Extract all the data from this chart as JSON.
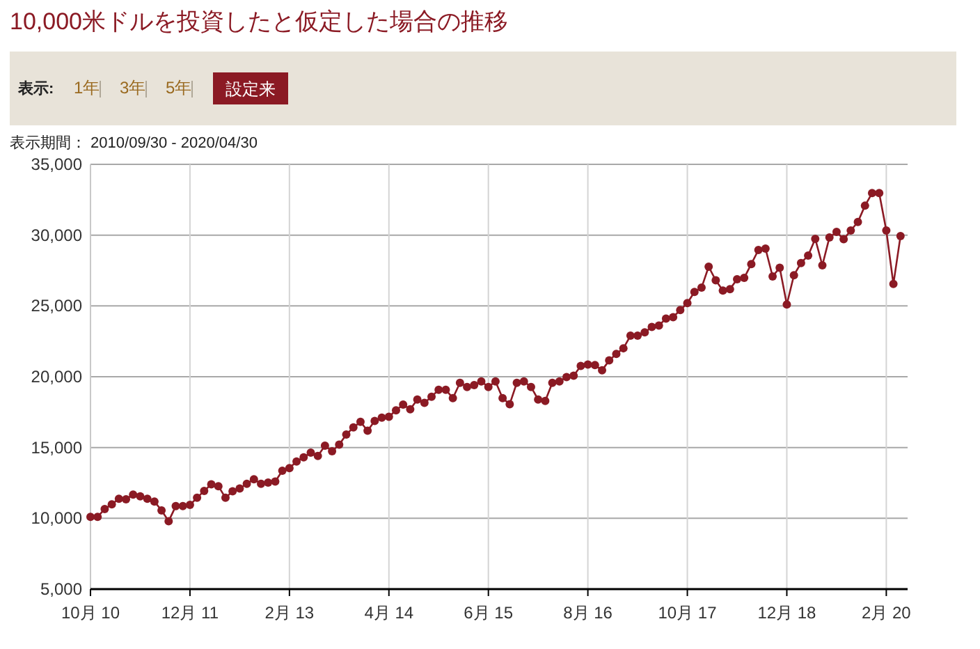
{
  "chart_data": {
    "type": "line",
    "title": "10,000米ドルを投資したと仮定した場合の推移",
    "annotations": [
      "表示:",
      "1年",
      "3年",
      "5年",
      "設定来",
      "表示期間： 2010/09/30 - 2020/04/30"
    ],
    "x": [
      "2010-10",
      "2010-11",
      "2010-12",
      "2011-01",
      "2011-02",
      "2011-03",
      "2011-04",
      "2011-05",
      "2011-06",
      "2011-07",
      "2011-08",
      "2011-09",
      "2011-10",
      "2011-11",
      "2011-12",
      "2012-01",
      "2012-02",
      "2012-03",
      "2012-04",
      "2012-05",
      "2012-06",
      "2012-07",
      "2012-08",
      "2012-09",
      "2012-10",
      "2012-11",
      "2012-12",
      "2013-01",
      "2013-02",
      "2013-03",
      "2013-04",
      "2013-05",
      "2013-06",
      "2013-07",
      "2013-08",
      "2013-09",
      "2013-10",
      "2013-11",
      "2013-12",
      "2014-01",
      "2014-02",
      "2014-03",
      "2014-04",
      "2014-05",
      "2014-06",
      "2014-07",
      "2014-08",
      "2014-09",
      "2014-10",
      "2014-11",
      "2014-12",
      "2015-01",
      "2015-02",
      "2015-03",
      "2015-04",
      "2015-05",
      "2015-06",
      "2015-07",
      "2015-08",
      "2015-09",
      "2015-10",
      "2015-11",
      "2015-12",
      "2016-01",
      "2016-02",
      "2016-03",
      "2016-04",
      "2016-05",
      "2016-06",
      "2016-07",
      "2016-08",
      "2016-09",
      "2016-10",
      "2016-11",
      "2016-12",
      "2017-01",
      "2017-02",
      "2017-03",
      "2017-04",
      "2017-05",
      "2017-06",
      "2017-07",
      "2017-08",
      "2017-09",
      "2017-10",
      "2017-11",
      "2017-12",
      "2018-01",
      "2018-02",
      "2018-03",
      "2018-04",
      "2018-05",
      "2018-06",
      "2018-07",
      "2018-08",
      "2018-09",
      "2018-10",
      "2018-11",
      "2018-12",
      "2019-01",
      "2019-02",
      "2019-03",
      "2019-04",
      "2019-05",
      "2019-06",
      "2019-07",
      "2019-08",
      "2019-09",
      "2019-10",
      "2019-11",
      "2019-12",
      "2020-01",
      "2020-02",
      "2020-03",
      "2020-04"
    ],
    "series": [
      {
        "color": "#8b1a24",
        "values": [
          10100,
          10100,
          10660,
          10990,
          11380,
          11350,
          11680,
          11550,
          11380,
          11190,
          10560,
          9800,
          10860,
          10860,
          10950,
          11450,
          11940,
          12400,
          12270,
          11450,
          11910,
          12110,
          12440,
          12760,
          12440,
          12530,
          12600,
          13360,
          13550,
          14010,
          14310,
          14640,
          14410,
          15130,
          14740,
          15200,
          15920,
          16420,
          16810,
          16190,
          16880,
          17110,
          17170,
          17630,
          18030,
          17700,
          18390,
          18160,
          18590,
          19080,
          19080,
          18490,
          19570,
          19280,
          19410,
          19670,
          19280,
          19670,
          18490,
          18060,
          19570,
          19670,
          19280,
          18390,
          18290,
          19570,
          19670,
          19970,
          20070,
          20760,
          20860,
          20820,
          20460,
          21150,
          21610,
          22010,
          22900,
          22900,
          23130,
          23520,
          23620,
          24110,
          24210,
          24710,
          25200,
          25990,
          26290,
          27770,
          26810,
          26090,
          26190,
          26880,
          26980,
          27960,
          28950,
          29050,
          27080,
          27700,
          25100,
          27170,
          28030,
          28560,
          29740,
          27870,
          29840,
          30230,
          29710,
          30330,
          30930,
          32080,
          32970,
          32970,
          30330,
          26550,
          29940
        ]
      }
    ],
    "xlim": [
      "2010-10",
      "2020-05"
    ],
    "xticks": [
      {
        "value": "2010-10",
        "label": "10月 10"
      },
      {
        "value": "2011-12",
        "label": "12月 11"
      },
      {
        "value": "2013-02",
        "label": "2月 13"
      },
      {
        "value": "2014-04",
        "label": "4月 14"
      },
      {
        "value": "2015-06",
        "label": "6月 15"
      },
      {
        "value": "2016-08",
        "label": "8月 16"
      },
      {
        "value": "2017-10",
        "label": "10月 17"
      },
      {
        "value": "2018-12",
        "label": "12月 18"
      },
      {
        "value": "2020-02",
        "label": "2月 20"
      }
    ],
    "ylim": [
      5000,
      35000
    ],
    "yticks": [
      {
        "value": 5000,
        "label": "5,000"
      },
      {
        "value": 10000,
        "label": "10,000"
      },
      {
        "value": 15000,
        "label": "15,000"
      },
      {
        "value": 20000,
        "label": "20,000"
      },
      {
        "value": 25000,
        "label": "25,000"
      },
      {
        "value": 30000,
        "label": "30,000"
      },
      {
        "value": 35000,
        "label": "35,000"
      }
    ],
    "grid": true,
    "marker": "circle",
    "line_style": "solid"
  }
}
